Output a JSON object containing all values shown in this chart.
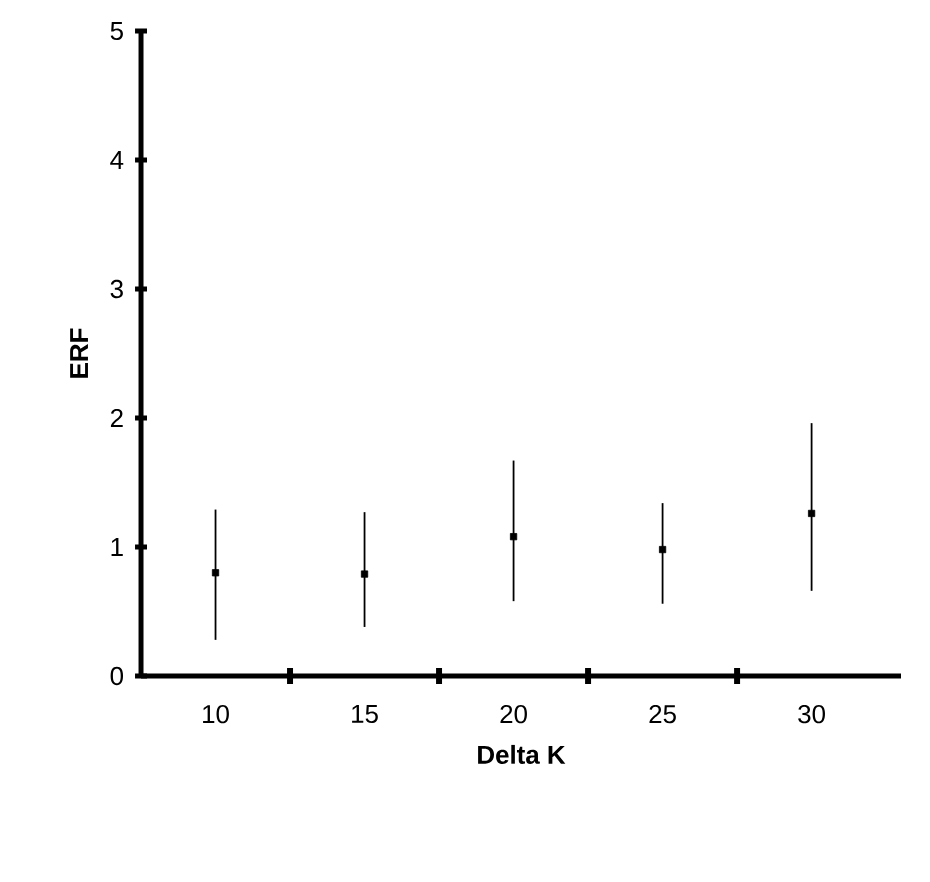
{
  "chart_data": {
    "type": "scatter",
    "xlabel": "Delta K",
    "ylabel": "ERF",
    "categories": [
      "10",
      "15",
      "20",
      "25",
      "30"
    ],
    "values": [
      0.8,
      0.79,
      1.08,
      0.98,
      1.26
    ],
    "errors": [
      [
        0.28,
        1.29
      ],
      [
        0.38,
        1.27
      ],
      [
        0.58,
        1.67
      ],
      [
        0.56,
        1.34
      ],
      [
        0.66,
        1.96
      ]
    ],
    "color": "#000000",
    "marker": "square",
    "ylim": [
      0,
      5
    ],
    "yticks": [
      0,
      1,
      2,
      3,
      4,
      5
    ]
  }
}
